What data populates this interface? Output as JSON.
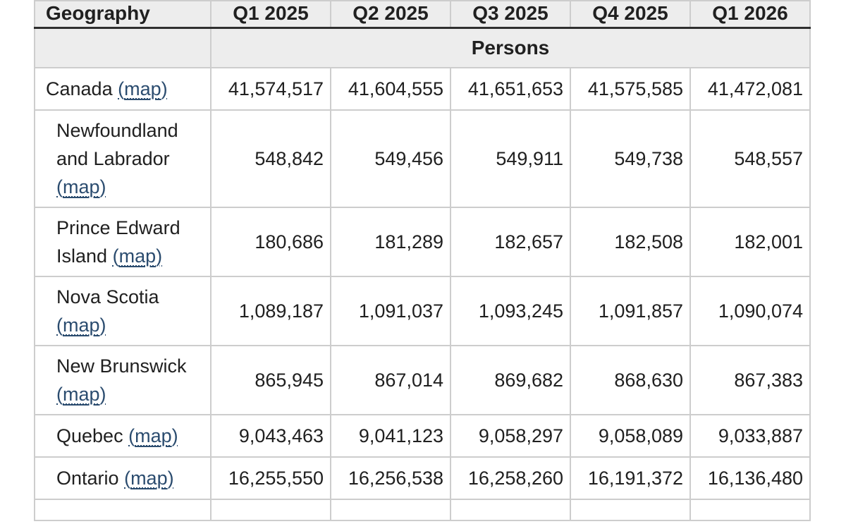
{
  "chart_data": {
    "type": "table",
    "columns": [
      "Geography",
      "Q1 2025",
      "Q2 2025",
      "Q3 2025",
      "Q4 2025",
      "Q1 2026"
    ],
    "unit_header": "Persons",
    "rows": [
      {
        "geography": "Canada",
        "values": [
          "41,574,517",
          "41,604,555",
          "41,651,653",
          "41,575,585",
          "41,472,081"
        ]
      },
      {
        "geography": "Newfoundland and Labrador",
        "values": [
          "548,842",
          "549,456",
          "549,911",
          "549,738",
          "548,557"
        ]
      },
      {
        "geography": "Prince Edward Island",
        "values": [
          "180,686",
          "181,289",
          "182,657",
          "182,508",
          "182,001"
        ]
      },
      {
        "geography": "Nova Scotia",
        "values": [
          "1,089,187",
          "1,091,037",
          "1,093,245",
          "1,091,857",
          "1,090,074"
        ]
      },
      {
        "geography": "New Brunswick",
        "values": [
          "865,945",
          "867,014",
          "869,682",
          "868,630",
          "867,383"
        ]
      },
      {
        "geography": "Quebec",
        "values": [
          "9,043,463",
          "9,041,123",
          "9,058,297",
          "9,058,089",
          "9,033,887"
        ]
      },
      {
        "geography": "Ontario",
        "values": [
          "16,255,550",
          "16,256,538",
          "16,258,260",
          "16,191,372",
          "16,136,480"
        ]
      }
    ]
  },
  "map_link": {
    "open": "(",
    "label": "map",
    "close": ")"
  },
  "colors": {
    "header_background": "#ededed",
    "cell_border": "#cdcdcd",
    "header_bottom_border": "#2f2f2f",
    "link": "#2b4c6f",
    "text": "#202020"
  }
}
